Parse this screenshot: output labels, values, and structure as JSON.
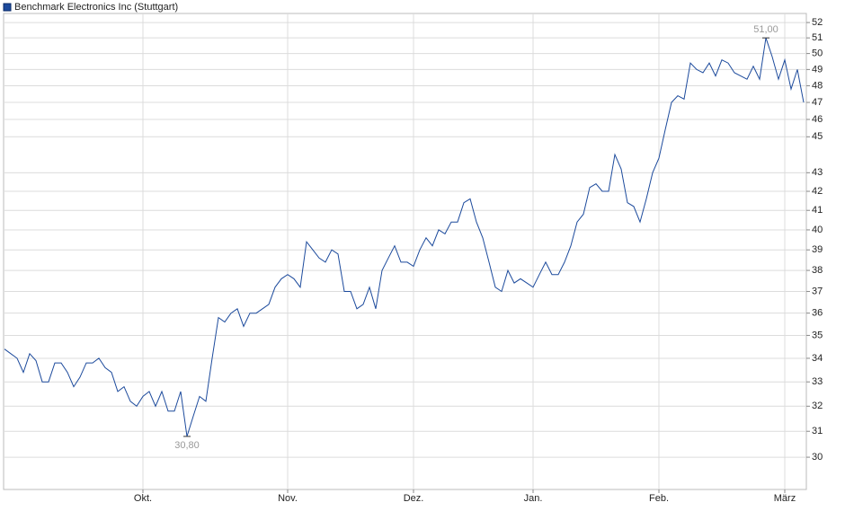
{
  "chart_data": {
    "type": "line",
    "legend": "top-left",
    "log_scale": true,
    "grid": true,
    "series": [
      {
        "name": "Benchmark Electronics Inc (Stuttgart)",
        "color": "#1c4a9c",
        "values": [
          34.4,
          34.2,
          34.0,
          33.4,
          34.2,
          33.9,
          33.0,
          33.0,
          33.8,
          33.8,
          33.4,
          32.8,
          33.2,
          33.8,
          33.8,
          34.0,
          33.6,
          33.4,
          32.6,
          32.8,
          32.2,
          32.0,
          32.4,
          32.6,
          32.0,
          32.6,
          31.8,
          31.8,
          32.6,
          30.8,
          31.6,
          32.4,
          32.2,
          34.0,
          35.8,
          35.6,
          36.0,
          36.2,
          35.4,
          36.0,
          36.0,
          36.2,
          36.4,
          37.2,
          37.6,
          37.8,
          37.6,
          37.2,
          39.4,
          39.0,
          38.6,
          38.4,
          39.0,
          38.8,
          37.0,
          37.0,
          36.2,
          36.4,
          37.2,
          36.2,
          38.0,
          38.6,
          39.2,
          38.4,
          38.4,
          38.2,
          39.0,
          39.6,
          39.2,
          40.0,
          39.8,
          40.4,
          40.4,
          41.4,
          41.6,
          40.4,
          39.6,
          38.4,
          37.2,
          37.0,
          38.0,
          37.4,
          37.6,
          37.4,
          37.2,
          37.8,
          38.4,
          37.8,
          37.8,
          38.4,
          39.2,
          40.4,
          40.8,
          42.2,
          42.4,
          42.0,
          42.0,
          44.0,
          43.2,
          41.4,
          41.2,
          40.4,
          41.6,
          43.0,
          43.8,
          45.4,
          47.0,
          47.4,
          47.2,
          49.4,
          49.0,
          48.8,
          49.4,
          48.6,
          49.6,
          49.4,
          48.8,
          48.6,
          48.4,
          49.2,
          48.4,
          51.0,
          49.8,
          48.4,
          49.6,
          47.8,
          49.0,
          47.0
        ]
      }
    ],
    "annotations": [
      {
        "x": 121,
        "label": "51,00"
      },
      {
        "x": 29,
        "label": "30,80"
      }
    ],
    "xlim": [
      0,
      127
    ],
    "xticks": [
      {
        "value": 22,
        "label": "Okt."
      },
      {
        "value": 45,
        "label": "Nov."
      },
      {
        "value": 65,
        "label": "Dez."
      },
      {
        "value": 84,
        "label": "Jan."
      },
      {
        "value": 104,
        "label": "Feb."
      },
      {
        "value": 124,
        "label": "März"
      }
    ],
    "ylim": [
      28.8,
      52.6
    ],
    "yticks": [
      30,
      31,
      32,
      33,
      34,
      35,
      36,
      37,
      38,
      39,
      40,
      41,
      42,
      43,
      45,
      46,
      47,
      48,
      49,
      50,
      51,
      52
    ]
  }
}
